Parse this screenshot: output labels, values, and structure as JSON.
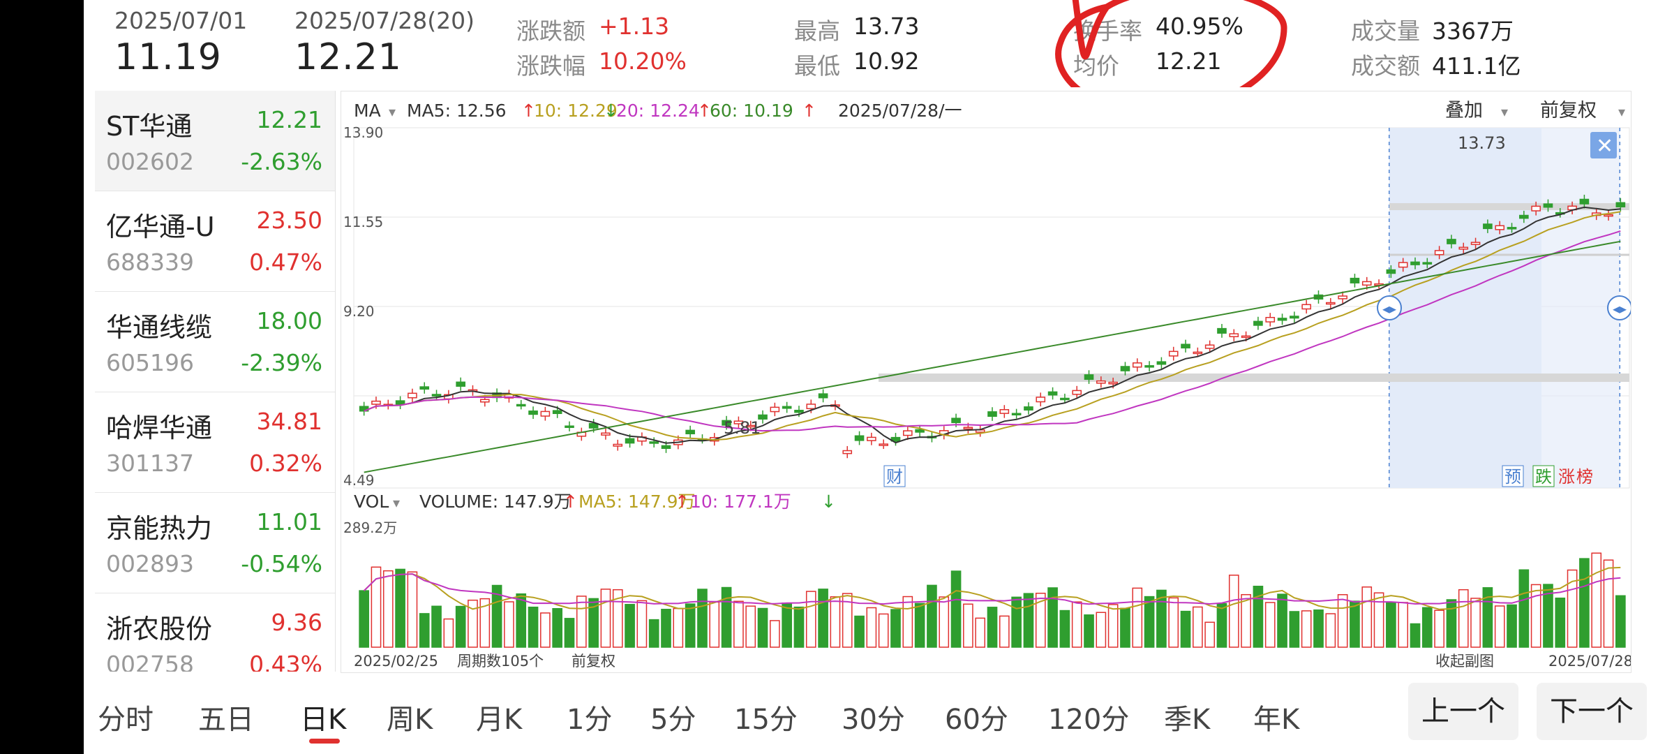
{
  "header": {
    "start_date": "2025/07/01",
    "start_price": "11.19",
    "end_date": "2025/07/28(20)",
    "end_price": "12.21",
    "stats": {
      "change_amount_label": "涨跌额",
      "change_amount": "+1.13",
      "change_pct_label": "涨跌幅",
      "change_pct": "10.20%",
      "high_label": "最高",
      "high": "13.73",
      "low_label": "最低",
      "low": "10.92",
      "turnover_label": "换手率",
      "turnover": "40.95%",
      "avg_label": "均价",
      "avg": "12.21",
      "volume_label": "成交量",
      "volume": "3367万",
      "amount_label": "成交额",
      "amount": "411.1亿"
    }
  },
  "stocks": [
    {
      "name": "ST华通",
      "code": "002602",
      "price": "12.21",
      "change": "-2.63%",
      "color": "#2f9e2f"
    },
    {
      "name": "亿华通-U",
      "code": "688339",
      "price": "23.50",
      "change": "0.47%",
      "color": "#e0312f"
    },
    {
      "name": "华通线缆",
      "code": "605196",
      "price": "18.00",
      "change": "-2.39%",
      "color": "#2f9e2f"
    },
    {
      "name": "哈焊华通",
      "code": "301137",
      "price": "34.81",
      "change": "0.32%",
      "color": "#e0312f"
    },
    {
      "name": "京能热力",
      "code": "002893",
      "price": "11.01",
      "change": "-0.54%",
      "color": "#2f9e2f"
    },
    {
      "name": "浙农股份",
      "code": "002758",
      "price": "9.36",
      "change": "0.43%",
      "color": "#e0312f"
    }
  ],
  "chart": {
    "indicator_label": "MA",
    "ma_legend": [
      "MA5: 12.56",
      "10: 12.29",
      "20: 12.24",
      "60: 10.19"
    ],
    "ma_colors": [
      "#333333",
      "#b8a020",
      "#c036c0",
      "#3a8a2a"
    ],
    "crosshair_date": "2025/07/28/一",
    "overlay_label": "叠加",
    "adjust_label": "前复权",
    "y_ticks": [
      "13.90",
      "11.55",
      "9.20",
      "4.49"
    ],
    "max_label": "13.73",
    "min_label": "5.81",
    "markers": {
      "fin": "财",
      "pre": "预",
      "fall": "跌",
      "rise": "涨",
      "rank": "榜"
    },
    "vol_indicator_label": "VOL",
    "vol_legend": [
      "VOLUME: 147.9万",
      "MA5: 147.9万",
      "10: 177.1万"
    ],
    "vol_max_label": "289.2万",
    "start_date": "2025/02/25",
    "period_count": "周期数105个",
    "adjust_footer": "前复权",
    "collapse_label": "收起副图",
    "end_date": "2025/07/28",
    "up_color": "#e0312f",
    "down_color": "#2f9e2f"
  },
  "tabs": [
    "分时",
    "五日",
    "日K",
    "周K",
    "月K",
    "1分",
    "5分",
    "15分",
    "30分",
    "60分",
    "120分",
    "季K",
    "年K"
  ],
  "active_tab": "日K",
  "buttons": {
    "prev": "上一个",
    "next": "下一个"
  }
}
